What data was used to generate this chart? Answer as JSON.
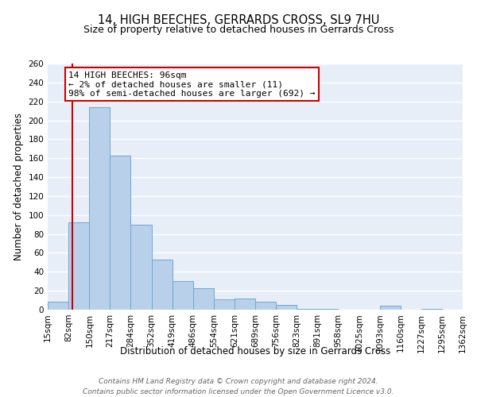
{
  "title": "14, HIGH BEECHES, GERRARDS CROSS, SL9 7HU",
  "subtitle": "Size of property relative to detached houses in Gerrards Cross",
  "xlabel": "Distribution of detached houses by size in Gerrards Cross",
  "ylabel": "Number of detached properties",
  "footer_line1": "Contains HM Land Registry data © Crown copyright and database right 2024.",
  "footer_line2": "Contains public sector information licensed under the Open Government Licence v3.0.",
  "annotation_title": "14 HIGH BEECHES: 96sqm",
  "annotation_line1": "← 2% of detached houses are smaller (11)",
  "annotation_line2": "98% of semi-detached houses are larger (692) →",
  "bin_edges": [
    15,
    82,
    150,
    217,
    284,
    352,
    419,
    486,
    554,
    621,
    689,
    756,
    823,
    891,
    958,
    1025,
    1093,
    1160,
    1227,
    1295,
    1362
  ],
  "bin_counts": [
    8,
    92,
    214,
    163,
    90,
    53,
    30,
    23,
    11,
    12,
    8,
    5,
    1,
    1,
    0,
    0,
    4,
    0,
    1,
    0
  ],
  "bar_color": "#b8d0ea",
  "bar_edge_color": "#6aaad4",
  "property_line_x": 96,
  "property_line_color": "#cc0000",
  "annotation_box_edge_color": "#cc0000",
  "ylim": [
    0,
    260
  ],
  "yticks": [
    0,
    20,
    40,
    60,
    80,
    100,
    120,
    140,
    160,
    180,
    200,
    220,
    240,
    260
  ],
  "bg_color": "#e8eef8",
  "grid_color": "#ffffff",
  "title_fontsize": 10.5,
  "subtitle_fontsize": 9,
  "axis_label_fontsize": 8.5,
  "tick_fontsize": 7.5,
  "annotation_fontsize": 8,
  "footer_fontsize": 6.5
}
